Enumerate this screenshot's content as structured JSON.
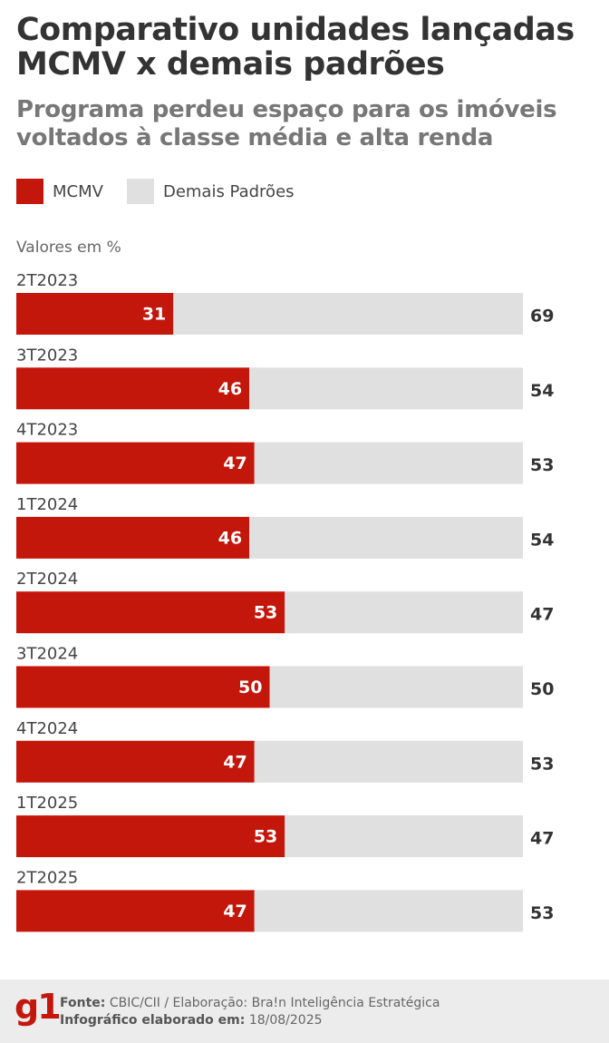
{
  "chart_data": {
    "type": "stacked_bar_horizontal",
    "title": "Comparativo unidades lançadas MCMV x demais padrões",
    "subtitle": "Programa perdeu espaço para os imóveis voltados à classe média e alta renda",
    "axis_note": "Valores em %",
    "categories": [
      "2T2023",
      "3T2023",
      "4T2023",
      "1T2024",
      "2T2024",
      "3T2024",
      "4T2024",
      "1T2025",
      "2T2025"
    ],
    "series": [
      {
        "name": "MCMV",
        "color": "#c4170c",
        "values": [
          31,
          46,
          47,
          46,
          53,
          50,
          47,
          53,
          47
        ]
      },
      {
        "name": "Demais Padrões",
        "color": "#e0e0e0",
        "values": [
          69,
          54,
          53,
          54,
          47,
          50,
          53,
          47,
          53
        ]
      }
    ],
    "xlim": [
      0,
      100
    ],
    "legend": "top-left"
  },
  "footer": {
    "logo": "g1",
    "source_label": "Fonte:",
    "source": "CBIC/CII / Elaboração: Bra!n Inteligência Estratégica",
    "date_label": "Infográfico elaborado em:",
    "date": "18/08/2025"
  }
}
